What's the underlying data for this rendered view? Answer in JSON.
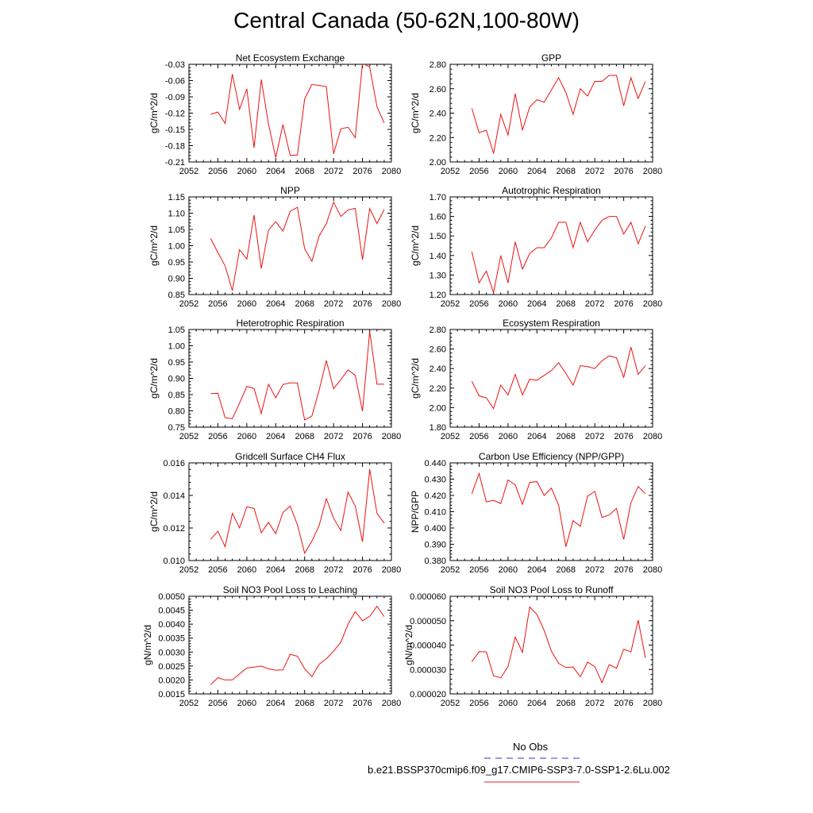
{
  "title": "Central Canada (50-62N,100-80W)",
  "legend": {
    "obs_label": "No Obs",
    "obs_color": "#3333cc",
    "model_label": "b.e21.BSSP370cmip6.f09_g17.CMIP6-SSP3-7.0-SSP1-2.6Lu.002",
    "model_color": "#dd2222"
  },
  "line_color": "#ee1111",
  "chart_data": [
    {
      "type": "line",
      "title": "Net Ecosystem Exchange",
      "ylabel": "gC/m^2/d",
      "xlim": [
        2052,
        2080
      ],
      "xticks": [
        2052,
        2056,
        2060,
        2064,
        2068,
        2072,
        2076,
        2080
      ],
      "ylim": [
        -0.21,
        -0.03
      ],
      "yticks": [
        "-0.21",
        "-0.18",
        "-0.15",
        "-0.12",
        "-0.09",
        "-0.06",
        "-0.03"
      ],
      "x": [
        2055,
        2056,
        2057,
        2058,
        2059,
        2060,
        2061,
        2062,
        2063,
        2064,
        2065,
        2066,
        2067,
        2068,
        2069,
        2070,
        2071,
        2072,
        2073,
        2074,
        2075,
        2076,
        2077,
        2078,
        2079
      ],
      "values": [
        -0.122,
        -0.118,
        -0.139,
        -0.048,
        -0.113,
        -0.075,
        -0.184,
        -0.058,
        -0.14,
        -0.202,
        -0.141,
        -0.198,
        -0.197,
        -0.094,
        -0.067,
        -0.069,
        -0.071,
        -0.195,
        -0.149,
        -0.146,
        -0.165,
        -0.028,
        -0.035,
        -0.108,
        -0.138
      ]
    },
    {
      "type": "line",
      "title": "GPP",
      "ylabel": "gC/m^2/d",
      "xlim": [
        2052,
        2080
      ],
      "xticks": [
        2052,
        2056,
        2060,
        2064,
        2068,
        2072,
        2076,
        2080
      ],
      "ylim": [
        2.0,
        2.8
      ],
      "yticks": [
        "2.00",
        "2.20",
        "2.40",
        "2.60",
        "2.80"
      ],
      "x": [
        2055,
        2056,
        2057,
        2058,
        2059,
        2060,
        2061,
        2062,
        2063,
        2064,
        2065,
        2066,
        2067,
        2068,
        2069,
        2070,
        2071,
        2072,
        2073,
        2074,
        2075,
        2076,
        2077,
        2078,
        2079
      ],
      "values": [
        2.44,
        2.24,
        2.26,
        2.07,
        2.39,
        2.22,
        2.56,
        2.26,
        2.45,
        2.51,
        2.49,
        2.59,
        2.69,
        2.57,
        2.39,
        2.6,
        2.54,
        2.66,
        2.66,
        2.71,
        2.71,
        2.46,
        2.69,
        2.52,
        2.66
      ]
    },
    {
      "type": "line",
      "title": "NPP",
      "ylabel": "gC/m^2/d",
      "xlim": [
        2052,
        2080
      ],
      "xticks": [
        2052,
        2056,
        2060,
        2064,
        2068,
        2072,
        2076,
        2080
      ],
      "ylim": [
        0.85,
        1.15
      ],
      "yticks": [
        "0.85",
        "0.90",
        "0.95",
        "1.00",
        "1.05",
        "1.10",
        "1.15"
      ],
      "x": [
        2055,
        2056,
        2057,
        2058,
        2059,
        2060,
        2061,
        2062,
        2063,
        2064,
        2065,
        2066,
        2067,
        2068,
        2069,
        2070,
        2071,
        2072,
        2073,
        2074,
        2075,
        2076,
        2077,
        2078,
        2079
      ],
      "values": [
        1.022,
        0.979,
        0.938,
        0.862,
        0.988,
        0.959,
        1.094,
        0.93,
        1.048,
        1.074,
        1.045,
        1.106,
        1.118,
        0.991,
        0.952,
        1.03,
        1.068,
        1.134,
        1.09,
        1.11,
        1.115,
        0.957,
        1.114,
        1.068,
        1.111
      ]
    },
    {
      "type": "line",
      "title": "Autotrophic Respiration",
      "ylabel": "gC/m^2/d",
      "xlim": [
        2052,
        2080
      ],
      "xticks": [
        2052,
        2056,
        2060,
        2064,
        2068,
        2072,
        2076,
        2080
      ],
      "ylim": [
        1.2,
        1.7
      ],
      "yticks": [
        "1.20",
        "1.30",
        "1.40",
        "1.50",
        "1.60",
        "1.70"
      ],
      "x": [
        2055,
        2056,
        2057,
        2058,
        2059,
        2060,
        2061,
        2062,
        2063,
        2064,
        2065,
        2066,
        2067,
        2068,
        2069,
        2070,
        2071,
        2072,
        2073,
        2074,
        2075,
        2076,
        2077,
        2078,
        2079
      ],
      "values": [
        1.42,
        1.26,
        1.32,
        1.21,
        1.4,
        1.26,
        1.47,
        1.33,
        1.41,
        1.44,
        1.44,
        1.49,
        1.57,
        1.57,
        1.44,
        1.57,
        1.47,
        1.53,
        1.58,
        1.6,
        1.6,
        1.51,
        1.57,
        1.46,
        1.55
      ]
    },
    {
      "type": "line",
      "title": "Heterotrophic Respiration",
      "ylabel": "gC/m^2/d",
      "xlim": [
        2052,
        2080
      ],
      "xticks": [
        2052,
        2056,
        2060,
        2064,
        2068,
        2072,
        2076,
        2080
      ],
      "ylim": [
        0.75,
        1.05
      ],
      "yticks": [
        "0.75",
        "0.80",
        "0.85",
        "0.90",
        "0.95",
        "1.00",
        "1.05"
      ],
      "x": [
        2055,
        2056,
        2057,
        2058,
        2059,
        2060,
        2061,
        2062,
        2063,
        2064,
        2065,
        2066,
        2067,
        2068,
        2069,
        2070,
        2071,
        2072,
        2073,
        2074,
        2075,
        2076,
        2077,
        2078,
        2079
      ],
      "values": [
        0.853,
        0.854,
        0.779,
        0.776,
        0.824,
        0.875,
        0.869,
        0.792,
        0.882,
        0.84,
        0.881,
        0.886,
        0.886,
        0.772,
        0.784,
        0.863,
        0.955,
        0.868,
        0.896,
        0.926,
        0.909,
        0.799,
        1.044,
        0.882,
        0.882
      ]
    },
    {
      "type": "line",
      "title": "Ecosystem Respiration",
      "ylabel": "gC/m^2/d",
      "xlim": [
        2052,
        2080
      ],
      "xticks": [
        2052,
        2056,
        2060,
        2064,
        2068,
        2072,
        2076,
        2080
      ],
      "ylim": [
        1.8,
        2.8
      ],
      "yticks": [
        "1.80",
        "2.00",
        "2.20",
        "2.40",
        "2.60",
        "2.80"
      ],
      "x": [
        2055,
        2056,
        2057,
        2058,
        2059,
        2060,
        2061,
        2062,
        2063,
        2064,
        2065,
        2066,
        2067,
        2068,
        2069,
        2070,
        2071,
        2072,
        2073,
        2074,
        2075,
        2076,
        2077,
        2078,
        2079
      ],
      "values": [
        2.27,
        2.12,
        2.1,
        1.99,
        2.23,
        2.13,
        2.34,
        2.13,
        2.29,
        2.28,
        2.33,
        2.38,
        2.46,
        2.35,
        2.23,
        2.43,
        2.42,
        2.4,
        2.48,
        2.53,
        2.51,
        2.31,
        2.62,
        2.34,
        2.43
      ]
    },
    {
      "type": "line",
      "title": "Gridcell Surface CH4 Flux",
      "ylabel": "gC/m^2/d",
      "xlim": [
        2052,
        2080
      ],
      "xticks": [
        2052,
        2056,
        2060,
        2064,
        2068,
        2072,
        2076,
        2080
      ],
      "ylim": [
        0.01,
        0.016
      ],
      "yticks": [
        "0.010",
        "0.012",
        "0.014",
        "0.016"
      ],
      "x": [
        2055,
        2056,
        2057,
        2058,
        2059,
        2060,
        2061,
        2062,
        2063,
        2064,
        2065,
        2066,
        2067,
        2068,
        2069,
        2070,
        2071,
        2072,
        2073,
        2074,
        2075,
        2076,
        2077,
        2078,
        2079
      ],
      "values": [
        0.0113,
        0.0118,
        0.01085,
        0.0129,
        0.012,
        0.0133,
        0.0132,
        0.0117,
        0.01235,
        0.01165,
        0.01295,
        0.01335,
        0.0122,
        0.01045,
        0.0112,
        0.01215,
        0.0138,
        0.0126,
        0.01185,
        0.0142,
        0.01335,
        0.01115,
        0.0156,
        0.0129,
        0.0123
      ]
    },
    {
      "type": "line",
      "title": "Carbon Use Efficiency (NPP/GPP)",
      "ylabel": "NPP/GPP",
      "xlim": [
        2052,
        2080
      ],
      "xticks": [
        2052,
        2056,
        2060,
        2064,
        2068,
        2072,
        2076,
        2080
      ],
      "ylim": [
        0.38,
        0.44
      ],
      "yticks": [
        "0.380",
        "0.390",
        "0.400",
        "0.410",
        "0.420",
        "0.430",
        "0.440"
      ],
      "x": [
        2055,
        2056,
        2057,
        2058,
        2059,
        2060,
        2061,
        2062,
        2063,
        2064,
        2065,
        2066,
        2067,
        2068,
        2069,
        2070,
        2071,
        2072,
        2073,
        2074,
        2075,
        2076,
        2077,
        2078,
        2079
      ],
      "values": [
        0.421,
        0.4335,
        0.416,
        0.417,
        0.415,
        0.4295,
        0.4265,
        0.4145,
        0.428,
        0.4285,
        0.42,
        0.4245,
        0.414,
        0.3885,
        0.4045,
        0.401,
        0.4195,
        0.4225,
        0.4065,
        0.408,
        0.412,
        0.393,
        0.4155,
        0.4255,
        0.421
      ]
    },
    {
      "type": "line",
      "title": "Soil NO3 Pool Loss to Leaching",
      "ylabel": "gN/m^2/d",
      "xlim": [
        2052,
        2080
      ],
      "xticks": [
        2052,
        2056,
        2060,
        2064,
        2068,
        2072,
        2076,
        2080
      ],
      "ylim": [
        0.0015,
        0.005
      ],
      "yticks": [
        "0.0015",
        "0.0020",
        "0.0025",
        "0.0030",
        "0.0035",
        "0.0040",
        "0.0045",
        "0.0050"
      ],
      "x": [
        2055,
        2056,
        2057,
        2058,
        2059,
        2060,
        2061,
        2062,
        2063,
        2064,
        2065,
        2066,
        2067,
        2068,
        2069,
        2070,
        2071,
        2072,
        2073,
        2074,
        2075,
        2076,
        2077,
        2078,
        2079
      ],
      "values": [
        0.00183,
        0.00208,
        0.002,
        0.002,
        0.00222,
        0.00243,
        0.00246,
        0.0025,
        0.0024,
        0.00235,
        0.00236,
        0.00292,
        0.00285,
        0.0024,
        0.00212,
        0.00256,
        0.00276,
        0.00303,
        0.00335,
        0.004,
        0.00445,
        0.00412,
        0.00428,
        0.00464,
        0.00427
      ]
    },
    {
      "type": "line",
      "title": "Soil NO3 Pool Loss to Runoff",
      "ylabel": "gN/m^2/d",
      "xlim": [
        2052,
        2080
      ],
      "xticks": [
        2052,
        2056,
        2060,
        2064,
        2068,
        2072,
        2076,
        2080
      ],
      "ylim": [
        2e-05,
        6e-05
      ],
      "yticks": [
        "0.000020",
        "0.000030",
        "0.000040",
        "0.000050",
        "0.000060"
      ],
      "x": [
        2055,
        2056,
        2057,
        2058,
        2059,
        2060,
        2061,
        2062,
        2063,
        2064,
        2065,
        2066,
        2067,
        2068,
        2069,
        2070,
        2071,
        2072,
        2073,
        2074,
        2075,
        2076,
        2077,
        2078,
        2079
      ],
      "values": [
        3.32e-05,
        3.73e-05,
        3.72e-05,
        2.74e-05,
        2.66e-05,
        3.12e-05,
        4.33e-05,
        3.7e-05,
        5.56e-05,
        5.25e-05,
        4.6e-05,
        3.75e-05,
        3.25e-05,
        3.08e-05,
        3.1e-05,
        2.7e-05,
        3.3e-05,
        3.12e-05,
        2.46e-05,
        3.2e-05,
        3.05e-05,
        3.83e-05,
        3.72e-05,
        5.02e-05,
        3.48e-05
      ]
    }
  ]
}
